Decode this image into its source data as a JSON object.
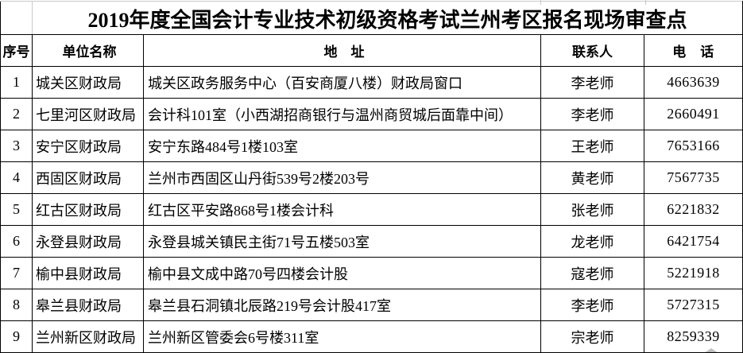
{
  "title": "2019年度全国会计专业技术初级资格考试兰州考区报名现场审查点",
  "table": {
    "columns": [
      {
        "key": "seq",
        "label": "序号"
      },
      {
        "key": "unit",
        "label": "单位名称"
      },
      {
        "key": "address",
        "label": "地　址"
      },
      {
        "key": "contact",
        "label": "联系人"
      },
      {
        "key": "phone",
        "label": "电　话"
      }
    ],
    "rows": [
      {
        "seq": "1",
        "unit": "城关区财政局",
        "address": "城关区政务服务中心（百安商厦八楼）财政局窗口",
        "contact": "李老师",
        "phone": "4663639"
      },
      {
        "seq": "2",
        "unit": "七里河区财政局",
        "address": "会计科101室（小西湖招商银行与温州商贸城后面靠中间）",
        "contact": "李老师",
        "phone": "2660491"
      },
      {
        "seq": "3",
        "unit": "安宁区财政局",
        "address": "安宁东路484号1楼103室",
        "contact": "王老师",
        "phone": "7653166"
      },
      {
        "seq": "4",
        "unit": "西固区财政局",
        "address": "兰州市西固区山丹街539号2楼203号",
        "contact": "黄老师",
        "phone": "7567735"
      },
      {
        "seq": "5",
        "unit": "红古区财政局",
        "address": "红古区平安路868号1楼会计科",
        "contact": "张老师",
        "phone": "6221832"
      },
      {
        "seq": "6",
        "unit": "永登县财政局",
        "address": "永登县城关镇民主街71号五楼503室",
        "contact": "龙老师",
        "phone": "6421754"
      },
      {
        "seq": "7",
        "unit": "榆中县财政局",
        "address": "榆中县文成中路70号四楼会计股",
        "contact": "寇老师",
        "phone": "5221918"
      },
      {
        "seq": "8",
        "unit": "皋兰县财政局",
        "address": "皋兰县石洞镇北辰路219号会计股417室",
        "contact": "李老师",
        "phone": "5727315"
      },
      {
        "seq": "9",
        "unit": "兰州新区财政局",
        "address": "兰州新区管委会6号楼311室",
        "contact": "宗老师",
        "phone": "8259339"
      }
    ]
  },
  "colors": {
    "border": "#000000",
    "gridline": "#c9c9c9",
    "background": "#ffffff",
    "text": "#000000"
  }
}
